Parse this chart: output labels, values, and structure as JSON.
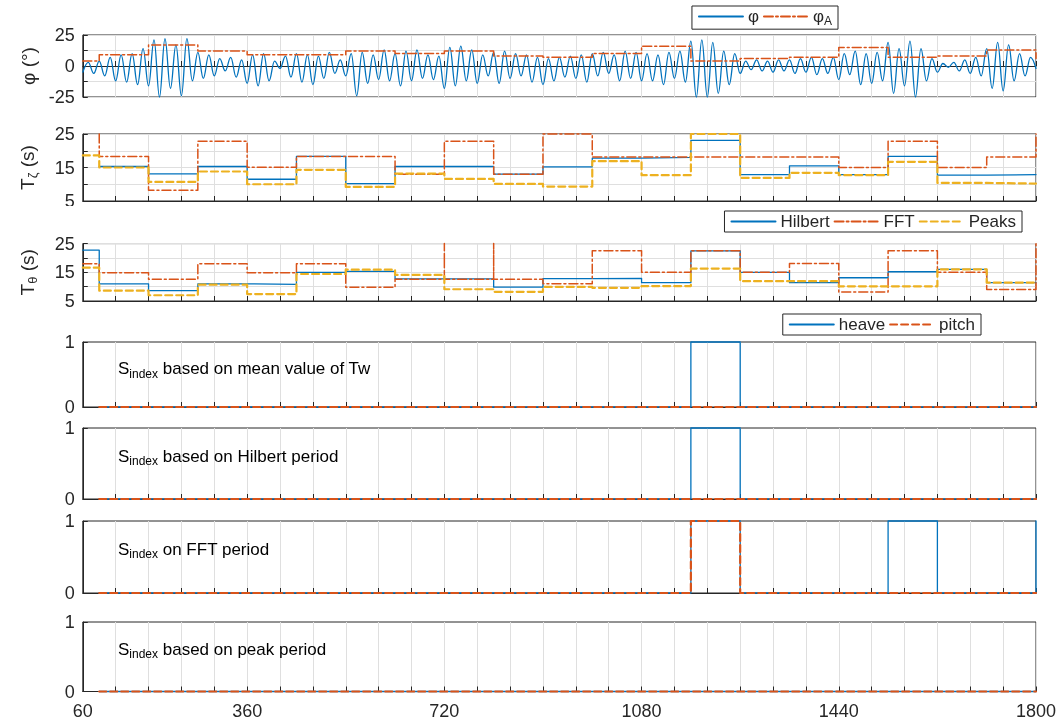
{
  "chart_data": [
    {
      "type": "line",
      "ylabel": "φ (°)",
      "xlim": [
        60,
        1800
      ],
      "xticks": [
        60,
        {
          "value": 120,
          "label": null
        },
        {
          "value": 180,
          "label": null
        },
        {
          "value": 240,
          "label": null
        },
        {
          "value": 300,
          "label": null
        },
        360,
        {
          "value": 420,
          "label": null
        },
        {
          "value": 480,
          "label": null
        },
        {
          "value": 540,
          "label": null
        },
        {
          "value": 600,
          "label": null
        },
        {
          "value": 660,
          "label": null
        },
        720,
        {
          "value": 780,
          "label": null
        },
        {
          "value": 840,
          "label": null
        },
        {
          "value": 900,
          "label": null
        },
        {
          "value": 960,
          "label": null
        },
        {
          "value": 1020,
          "label": null
        },
        1080,
        {
          "value": 1140,
          "label": null
        },
        {
          "value": 1200,
          "label": null
        },
        {
          "value": 1260,
          "label": null
        },
        {
          "value": 1320,
          "label": null
        },
        {
          "value": 1380,
          "label": null
        },
        1440,
        {
          "value": 1500,
          "label": null
        },
        {
          "value": 1560,
          "label": null
        },
        {
          "value": 1620,
          "label": null
        },
        {
          "value": 1680,
          "label": null
        },
        {
          "value": 1740,
          "label": null
        },
        1800
      ],
      "ylim": [
        -25,
        25
      ],
      "yticks": [
        -25,
        {
          "value": -12.5,
          "label": null
        },
        0,
        {
          "value": 12.5,
          "label": null
        },
        25
      ],
      "tick_labels": "y",
      "grid": true,
      "legend": "top right",
      "marker": "none",
      "series": [
        {
          "name": "φ",
          "color": "#0072bd",
          "line_style": "solid",
          "x": [
            60,
            70,
            80,
            90,
            100,
            110,
            120,
            130,
            140,
            150,
            160,
            170,
            180,
            190,
            200,
            210,
            220,
            230,
            240,
            250,
            260,
            270,
            280,
            290,
            300,
            310,
            320,
            330,
            340,
            350,
            360,
            370,
            380,
            390,
            400,
            410,
            420,
            430,
            440,
            450,
            460,
            470,
            480,
            490,
            500,
            510,
            520,
            530,
            540,
            550,
            560,
            570,
            580,
            590,
            600,
            610,
            620,
            630,
            640,
            650,
            660,
            670,
            680,
            690,
            700,
            710,
            720,
            730,
            740,
            750,
            760,
            770,
            780,
            790,
            800,
            810,
            820,
            830,
            840,
            850,
            860,
            870,
            880,
            890,
            900,
            910,
            920,
            930,
            940,
            950,
            960,
            970,
            980,
            990,
            1000,
            1010,
            1020,
            1030,
            1040,
            1050,
            1060,
            1070,
            1080,
            1090,
            1100,
            1110,
            1120,
            1130,
            1140,
            1150,
            1160,
            1170,
            1180,
            1190,
            1200,
            1210,
            1220,
            1230,
            1240,
            1250,
            1260,
            1270,
            1280,
            1290,
            1300,
            1310,
            1320,
            1330,
            1340,
            1350,
            1360,
            1370,
            1380,
            1390,
            1400,
            1410,
            1420,
            1430,
            1440,
            1450,
            1460,
            1470,
            1480,
            1490,
            1500,
            1510,
            1520,
            1530,
            1540,
            1550,
            1560,
            1570,
            1580,
            1590,
            1600,
            1610,
            1620,
            1630,
            1640,
            1650,
            1660,
            1670,
            1680,
            1690,
            1700,
            1710,
            1720,
            1730,
            1740,
            1750,
            1760,
            1770,
            1780,
            1790,
            1800
          ],
          "values": [
            -5,
            3,
            -6,
            4,
            -8,
            7,
            -12,
            9,
            -13,
            10,
            -15,
            14,
            -16,
            21,
            -25,
            22,
            -18,
            17,
            -24,
            22,
            -12,
            11,
            -10,
            9,
            -8,
            6,
            -4,
            7,
            -9,
            5,
            -14,
            9,
            -16,
            10,
            -12,
            4,
            -2,
            8,
            -9,
            10,
            -13,
            9,
            -15,
            8,
            -10,
            11,
            -6,
            5,
            -8,
            10,
            -24,
            11,
            -14,
            9,
            -11,
            13,
            -12,
            10,
            -16,
            12,
            -12,
            13,
            -10,
            9,
            -11,
            8,
            -18,
            15,
            -16,
            16,
            -12,
            13,
            -14,
            9,
            -8,
            11,
            -14,
            12,
            -10,
            10,
            -8,
            9,
            -13,
            7,
            -15,
            6,
            -12,
            7,
            -9,
            8,
            -10,
            9,
            -13,
            10,
            -8,
            11,
            -6,
            9,
            -12,
            12,
            -10,
            11,
            -12,
            10,
            -12,
            9,
            -15,
            11,
            -10,
            12,
            -13,
            20,
            -25,
            21,
            -25,
            19,
            -22,
            12,
            -15,
            10,
            -6,
            4,
            -3,
            5,
            -4,
            4,
            -5,
            5,
            -4,
            5,
            -6,
            6,
            -5,
            7,
            -7,
            6,
            -6,
            7,
            -11,
            10,
            -7,
            12,
            -15,
            10,
            -14,
            11,
            -12,
            19,
            -22,
            14,
            -16,
            20,
            -25,
            14,
            -12,
            6,
            -5,
            2,
            -1,
            3,
            -4,
            5,
            -6,
            7,
            -8,
            14,
            -18,
            19,
            -20,
            17,
            -12,
            10,
            -8,
            7,
            -2
          ]
        },
        {
          "name": "φ$_{A}$",
          "type": "step",
          "color": "#d95319",
          "line_style": "dashdot",
          "x": [
            60,
            90,
            180,
            270,
            360,
            450,
            540,
            630,
            720,
            810,
            900,
            990,
            1080,
            1170,
            1260,
            1350,
            1440,
            1530,
            1620,
            1710,
            1800,
            1800
          ],
          "values": [
            4,
            9,
            17,
            12,
            9,
            9,
            12,
            10,
            12,
            8,
            7,
            10,
            16,
            4,
            6,
            7,
            15,
            7,
            8,
            13,
            13,
            6
          ]
        }
      ]
    },
    {
      "type": "step",
      "ylabel": "T$_{ζ}$ (s)",
      "xlim": [
        60,
        1800
      ],
      "xticks": [
        60,
        {
          "value": 120,
          "label": null
        },
        {
          "value": 180,
          "label": null
        },
        {
          "value": 240,
          "label": null
        },
        {
          "value": 300,
          "label": null
        },
        360,
        {
          "value": 420,
          "label": null
        },
        {
          "value": 480,
          "label": null
        },
        {
          "value": 540,
          "label": null
        },
        {
          "value": 600,
          "label": null
        },
        {
          "value": 660,
          "label": null
        },
        720,
        {
          "value": 780,
          "label": null
        },
        {
          "value": 840,
          "label": null
        },
        {
          "value": 900,
          "label": null
        },
        {
          "value": 960,
          "label": null
        },
        {
          "value": 1020,
          "label": null
        },
        1080,
        {
          "value": 1140,
          "label": null
        },
        {
          "value": 1200,
          "label": null
        },
        {
          "value": 1260,
          "label": null
        },
        {
          "value": 1320,
          "label": null
        },
        {
          "value": 1380,
          "label": null
        },
        1440,
        {
          "value": 1500,
          "label": null
        },
        {
          "value": 1560,
          "label": null
        },
        {
          "value": 1620,
          "label": null
        },
        {
          "value": 1680,
          "label": null
        },
        {
          "value": 1740,
          "label": null
        },
        1800
      ],
      "ylim": [
        5,
        25
      ],
      "yticks": [
        5,
        {
          "value": 10,
          "label": null
        },
        15,
        {
          "value": 20,
          "label": null
        },
        25
      ],
      "tick_labels": "y",
      "grid": true,
      "marker": "none",
      "series": [
        {
          "color": "#0072bd",
          "line_style": "solid",
          "x": [
            90,
            180,
            270,
            360,
            450,
            540,
            630,
            720,
            810,
            900,
            990,
            1080,
            1170,
            1260,
            1350,
            1440,
            1530,
            1620,
            1710,
            1800
          ],
          "values": [
            15.3,
            13.1,
            15.3,
            11.5,
            18.3,
            10.2,
            15.3,
            15.3,
            13.0,
            15.2,
            17.8,
            18.0,
            23.1,
            12.9,
            15.5,
            12.9,
            18.3,
            12.7,
            12.9,
            12.9
          ]
        },
        {
          "color": "#d95319",
          "line_style": "dashdot",
          "x": [
            90,
            90,
            180,
            270,
            360,
            450,
            540,
            630,
            720,
            810,
            900,
            990,
            1080,
            1170,
            1260,
            1350,
            1440,
            1530,
            1620,
            1710,
            1800,
            1800
          ],
          "values": [
            25,
            18.3,
            8.2,
            22.8,
            15.1,
            18.3,
            18.3,
            13.0,
            22.8,
            13.0,
            25,
            18.1,
            18.1,
            18.1,
            18.1,
            18.1,
            15.0,
            22.8,
            15.0,
            18.1,
            18.1,
            25
          ]
        },
        {
          "color": "#edb120",
          "line_style": "dashed",
          "x": [
            60,
            90,
            180,
            270,
            360,
            450,
            540,
            630,
            720,
            810,
            900,
            990,
            1080,
            1170,
            1260,
            1350,
            1440,
            1530,
            1620,
            1710,
            1800
          ],
          "values": [
            18.6,
            15.0,
            10.7,
            13.8,
            10.0,
            14.3,
            9.2,
            13.2,
            11.6,
            10.1,
            9.3,
            16.9,
            12.7,
            25,
            11.9,
            13.4,
            12.7,
            16.7,
            10.4,
            10.2,
            10.2
          ]
        }
      ]
    },
    {
      "type": "step",
      "ylabel": "T$_{θ}$ (s)",
      "xlim": [
        60,
        1800
      ],
      "xticks": [
        60,
        {
          "value": 120,
          "label": null
        },
        {
          "value": 180,
          "label": null
        },
        {
          "value": 240,
          "label": null
        },
        {
          "value": 300,
          "label": null
        },
        360,
        {
          "value": 420,
          "label": null
        },
        {
          "value": 480,
          "label": null
        },
        {
          "value": 540,
          "label": null
        },
        {
          "value": 600,
          "label": null
        },
        {
          "value": 660,
          "label": null
        },
        720,
        {
          "value": 780,
          "label": null
        },
        {
          "value": 840,
          "label": null
        },
        {
          "value": 900,
          "label": null
        },
        {
          "value": 960,
          "label": null
        },
        {
          "value": 1020,
          "label": null
        },
        1080,
        {
          "value": 1140,
          "label": null
        },
        {
          "value": 1200,
          "label": null
        },
        {
          "value": 1260,
          "label": null
        },
        {
          "value": 1320,
          "label": null
        },
        {
          "value": 1380,
          "label": null
        },
        1440,
        {
          "value": 1500,
          "label": null
        },
        {
          "value": 1560,
          "label": null
        },
        {
          "value": 1620,
          "label": null
        },
        {
          "value": 1680,
          "label": null
        },
        {
          "value": 1740,
          "label": null
        },
        1800
      ],
      "ylim": [
        5,
        25
      ],
      "yticks": [
        5,
        {
          "value": 10,
          "label": null
        },
        15,
        {
          "value": 20,
          "label": null
        },
        25
      ],
      "tick_labels": "y",
      "grid": true,
      "legend": "top right",
      "marker": "none",
      "series": [
        {
          "name": "Hilbert",
          "color": "#0072bd",
          "line_style": "solid",
          "x": [
            60,
            90,
            180,
            270,
            360,
            450,
            540,
            630,
            720,
            810,
            900,
            990,
            1080,
            1170,
            1260,
            1350,
            1440,
            1530,
            1620,
            1710,
            1800
          ],
          "values": [
            22.7,
            11.0,
            8.6,
            11.0,
            10.8,
            15.0,
            15.3,
            12.7,
            12.7,
            9.8,
            12.8,
            12.9,
            11.4,
            22.5,
            15.0,
            11.4,
            13.1,
            15.2,
            16.0,
            11.4,
            11.4
          ]
        },
        {
          "name": "FFT",
          "color": "#d95319",
          "line_style": "dashdot",
          "x": [
            60,
            90,
            180,
            270,
            360,
            450,
            540,
            630,
            720,
            720,
            810,
            810,
            900,
            990,
            1080,
            1170,
            1260,
            1350,
            1440,
            1530,
            1620,
            1710,
            1800,
            1800
          ],
          "values": [
            18.0,
            14.8,
            12.6,
            18.0,
            14.8,
            18.0,
            9.8,
            12.6,
            25,
            12.6,
            25,
            12.6,
            11.0,
            22.5,
            15.0,
            22.5,
            15.0,
            18.1,
            8.1,
            22.5,
            15.0,
            9.0,
            9.0,
            25
          ]
        },
        {
          "name": "Peaks",
          "color": "#edb120",
          "line_style": "dashed",
          "x": [
            60,
            90,
            180,
            270,
            360,
            450,
            540,
            630,
            720,
            810,
            900,
            990,
            1080,
            1170,
            1260,
            1350,
            1440,
            1530,
            1620,
            1710,
            1800
          ],
          "values": [
            16.6,
            8.6,
            7.0,
            10.7,
            7.4,
            14.4,
            15.9,
            14.1,
            9.1,
            8.2,
            9.9,
            9.6,
            10.2,
            16.3,
            11.9,
            11.9,
            10.1,
            10.1,
            16.0,
            11.4,
            11.4
          ]
        }
      ]
    },
    {
      "type": "step",
      "annotations": [
        "S$_{index}$ based on mean value of Tw"
      ],
      "xlim": [
        60,
        1800
      ],
      "xticks": [
        60,
        {
          "value": 120,
          "label": null
        },
        {
          "value": 180,
          "label": null
        },
        {
          "value": 240,
          "label": null
        },
        {
          "value": 300,
          "label": null
        },
        360,
        {
          "value": 420,
          "label": null
        },
        {
          "value": 480,
          "label": null
        },
        {
          "value": 540,
          "label": null
        },
        {
          "value": 600,
          "label": null
        },
        {
          "value": 660,
          "label": null
        },
        720,
        {
          "value": 780,
          "label": null
        },
        {
          "value": 840,
          "label": null
        },
        {
          "value": 900,
          "label": null
        },
        {
          "value": 960,
          "label": null
        },
        {
          "value": 1020,
          "label": null
        },
        1080,
        {
          "value": 1140,
          "label": null
        },
        {
          "value": 1200,
          "label": null
        },
        {
          "value": 1260,
          "label": null
        },
        {
          "value": 1320,
          "label": null
        },
        {
          "value": 1380,
          "label": null
        },
        1440,
        {
          "value": 1500,
          "label": null
        },
        {
          "value": 1560,
          "label": null
        },
        {
          "value": 1620,
          "label": null
        },
        {
          "value": 1680,
          "label": null
        },
        {
          "value": 1740,
          "label": null
        },
        1800
      ],
      "ylim": [
        0,
        1
      ],
      "yticks": [
        0,
        1
      ],
      "tick_labels": "y",
      "grid": "x",
      "legend": "top right",
      "marker": "none",
      "series": [
        {
          "name": "heave",
          "color": "#0072bd",
          "line_style": "solid",
          "x": [
            90,
            1170,
            1260,
            1800
          ],
          "values": [
            0,
            1,
            0,
            0
          ]
        },
        {
          "name": "pitch",
          "color": "#d95319",
          "line_style": "dashed",
          "x": [
            90,
            1800
          ],
          "values": [
            0,
            0
          ]
        }
      ]
    },
    {
      "type": "step",
      "annotations": [
        "S$_{index}$ based on Hilbert period"
      ],
      "xlim": [
        60,
        1800
      ],
      "xticks": [
        60,
        {
          "value": 120,
          "label": null
        },
        {
          "value": 180,
          "label": null
        },
        {
          "value": 240,
          "label": null
        },
        {
          "value": 300,
          "label": null
        },
        360,
        {
          "value": 420,
          "label": null
        },
        {
          "value": 480,
          "label": null
        },
        {
          "value": 540,
          "label": null
        },
        {
          "value": 600,
          "label": null
        },
        {
          "value": 660,
          "label": null
        },
        720,
        {
          "value": 780,
          "label": null
        },
        {
          "value": 840,
          "label": null
        },
        {
          "value": 900,
          "label": null
        },
        {
          "value": 960,
          "label": null
        },
        {
          "value": 1020,
          "label": null
        },
        1080,
        {
          "value": 1140,
          "label": null
        },
        {
          "value": 1200,
          "label": null
        },
        {
          "value": 1260,
          "label": null
        },
        {
          "value": 1320,
          "label": null
        },
        {
          "value": 1380,
          "label": null
        },
        1440,
        {
          "value": 1500,
          "label": null
        },
        {
          "value": 1560,
          "label": null
        },
        {
          "value": 1620,
          "label": null
        },
        {
          "value": 1680,
          "label": null
        },
        {
          "value": 1740,
          "label": null
        },
        1800
      ],
      "ylim": [
        0,
        1
      ],
      "yticks": [
        0,
        1
      ],
      "tick_labels": "y",
      "grid": "x",
      "marker": "none",
      "series": [
        {
          "color": "#0072bd",
          "line_style": "solid",
          "x": [
            90,
            1170,
            1260,
            1800
          ],
          "values": [
            0,
            1,
            0,
            0
          ]
        },
        {
          "color": "#d95319",
          "line_style": "dashed",
          "x": [
            90,
            1800
          ],
          "values": [
            0,
            0
          ]
        }
      ]
    },
    {
      "type": "step",
      "annotations": [
        "S$_{index}$ on FFT period"
      ],
      "xlim": [
        60,
        1800
      ],
      "xticks": [
        60,
        {
          "value": 120,
          "label": null
        },
        {
          "value": 180,
          "label": null
        },
        {
          "value": 240,
          "label": null
        },
        {
          "value": 300,
          "label": null
        },
        360,
        {
          "value": 420,
          "label": null
        },
        {
          "value": 480,
          "label": null
        },
        {
          "value": 540,
          "label": null
        },
        {
          "value": 600,
          "label": null
        },
        {
          "value": 660,
          "label": null
        },
        720,
        {
          "value": 780,
          "label": null
        },
        {
          "value": 840,
          "label": null
        },
        {
          "value": 900,
          "label": null
        },
        {
          "value": 960,
          "label": null
        },
        {
          "value": 1020,
          "label": null
        },
        1080,
        {
          "value": 1140,
          "label": null
        },
        {
          "value": 1200,
          "label": null
        },
        {
          "value": 1260,
          "label": null
        },
        {
          "value": 1320,
          "label": null
        },
        {
          "value": 1380,
          "label": null
        },
        1440,
        {
          "value": 1500,
          "label": null
        },
        {
          "value": 1560,
          "label": null
        },
        {
          "value": 1620,
          "label": null
        },
        {
          "value": 1680,
          "label": null
        },
        {
          "value": 1740,
          "label": null
        },
        1800
      ],
      "ylim": [
        0,
        1
      ],
      "yticks": [
        0,
        1
      ],
      "tick_labels": "y",
      "grid": "x",
      "marker": "none",
      "series": [
        {
          "color": "#0072bd",
          "line_style": "solid",
          "x": [
            90,
            1170,
            1260,
            1530,
            1620,
            1800
          ],
          "values": [
            0,
            1,
            0,
            1,
            0,
            1
          ]
        },
        {
          "color": "#d95319",
          "line_style": "dashed",
          "x": [
            90,
            1170,
            1260,
            1800
          ],
          "values": [
            0,
            1,
            0,
            0
          ]
        }
      ]
    },
    {
      "type": "step",
      "annotations": [
        "S$_{index}$ based on peak period"
      ],
      "xlim": [
        60,
        1800
      ],
      "xticks": [
        60,
        {
          "value": 120,
          "label": null
        },
        {
          "value": 180,
          "label": null
        },
        {
          "value": 240,
          "label": null
        },
        {
          "value": 300,
          "label": null
        },
        360,
        {
          "value": 420,
          "label": null
        },
        {
          "value": 480,
          "label": null
        },
        {
          "value": 540,
          "label": null
        },
        {
          "value": 600,
          "label": null
        },
        {
          "value": 660,
          "label": null
        },
        720,
        {
          "value": 780,
          "label": null
        },
        {
          "value": 840,
          "label": null
        },
        {
          "value": 900,
          "label": null
        },
        {
          "value": 960,
          "label": null
        },
        {
          "value": 1020,
          "label": null
        },
        1080,
        {
          "value": 1140,
          "label": null
        },
        {
          "value": 1200,
          "label": null
        },
        {
          "value": 1260,
          "label": null
        },
        {
          "value": 1320,
          "label": null
        },
        {
          "value": 1380,
          "label": null
        },
        1440,
        {
          "value": 1500,
          "label": null
        },
        {
          "value": 1560,
          "label": null
        },
        {
          "value": 1620,
          "label": null
        },
        {
          "value": 1680,
          "label": null
        },
        {
          "value": 1740,
          "label": null
        },
        1800
      ],
      "ylim": [
        0,
        1
      ],
      "yticks": [
        0,
        1
      ],
      "grid": "x",
      "marker": "none",
      "series": [
        {
          "color": "#0072bd",
          "line_style": "solid",
          "x": [
            90,
            1800
          ],
          "values": [
            0,
            0
          ]
        },
        {
          "color": "#d95319",
          "line_style": "dashed",
          "x": [
            90,
            1800
          ],
          "values": [
            0,
            0
          ]
        }
      ]
    }
  ]
}
